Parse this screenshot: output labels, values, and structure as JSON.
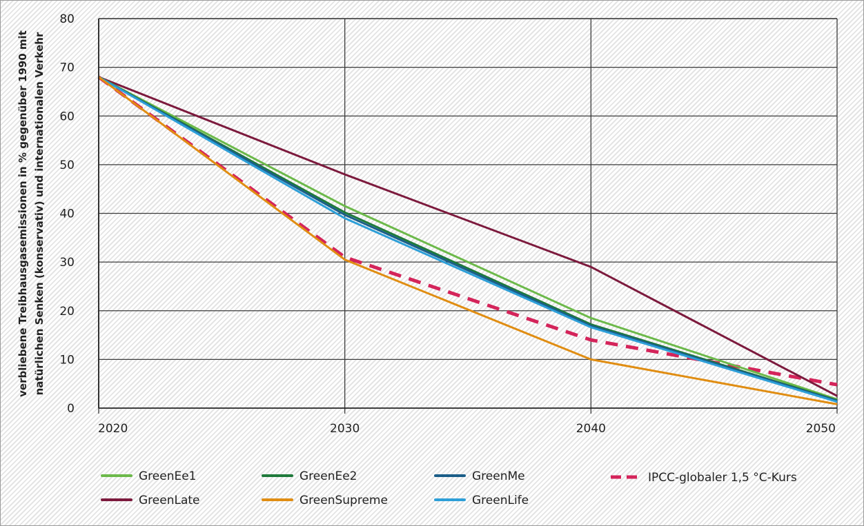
{
  "chart_data": {
    "type": "line",
    "title": "",
    "xlabel": "",
    "ylabel_line1": "verbliebene Treibhausgasemissionen in % gegenüber 1990 mit",
    "ylabel_line2": "natürlichen Senken (konservativ) und internationalen Verkehr",
    "x": [
      2020,
      2030,
      2040,
      2050
    ],
    "xlim": [
      2020,
      2050
    ],
    "ylim": [
      0,
      80
    ],
    "x_ticks": [
      "2020",
      "2030",
      "2040",
      "2050"
    ],
    "y_ticks": [
      "0",
      "10",
      "20",
      "30",
      "40",
      "50",
      "60",
      "70",
      "80"
    ],
    "grid": true,
    "legend_position": "bottom",
    "series": [
      {
        "name": "GreenEe1",
        "color": "#6cb94a",
        "dashed": false,
        "values": [
          68,
          41.5,
          18.5,
          1.8
        ]
      },
      {
        "name": "GreenEe2",
        "color": "#1f7a3b",
        "dashed": false,
        "values": [
          68,
          40.2,
          17.2,
          1.6
        ]
      },
      {
        "name": "GreenMe",
        "color": "#1b5e88",
        "dashed": false,
        "values": [
          68,
          39.7,
          16.9,
          1.5
        ]
      },
      {
        "name": "IPCC-globaler 1,5 °C-Kurs",
        "color": "#d4245a",
        "dashed": true,
        "values": [
          68,
          31,
          14,
          4.8
        ]
      },
      {
        "name": "GreenLate",
        "color": "#7c1a3d",
        "dashed": false,
        "values": [
          68,
          48,
          29,
          2.5
        ]
      },
      {
        "name": "GreenSupreme",
        "color": "#e08d12",
        "dashed": false,
        "values": [
          68,
          30.5,
          10,
          0.8
        ]
      },
      {
        "name": "GreenLife",
        "color": "#2d9fd8",
        "dashed": false,
        "values": [
          68,
          39,
          16.6,
          1.3
        ]
      }
    ],
    "draw_order": [
      "IPCC-globaler 1,5 °C-Kurs",
      "GreenLate",
      "GreenEe1",
      "GreenEe2",
      "GreenMe",
      "GreenLife",
      "GreenSupreme"
    ]
  }
}
